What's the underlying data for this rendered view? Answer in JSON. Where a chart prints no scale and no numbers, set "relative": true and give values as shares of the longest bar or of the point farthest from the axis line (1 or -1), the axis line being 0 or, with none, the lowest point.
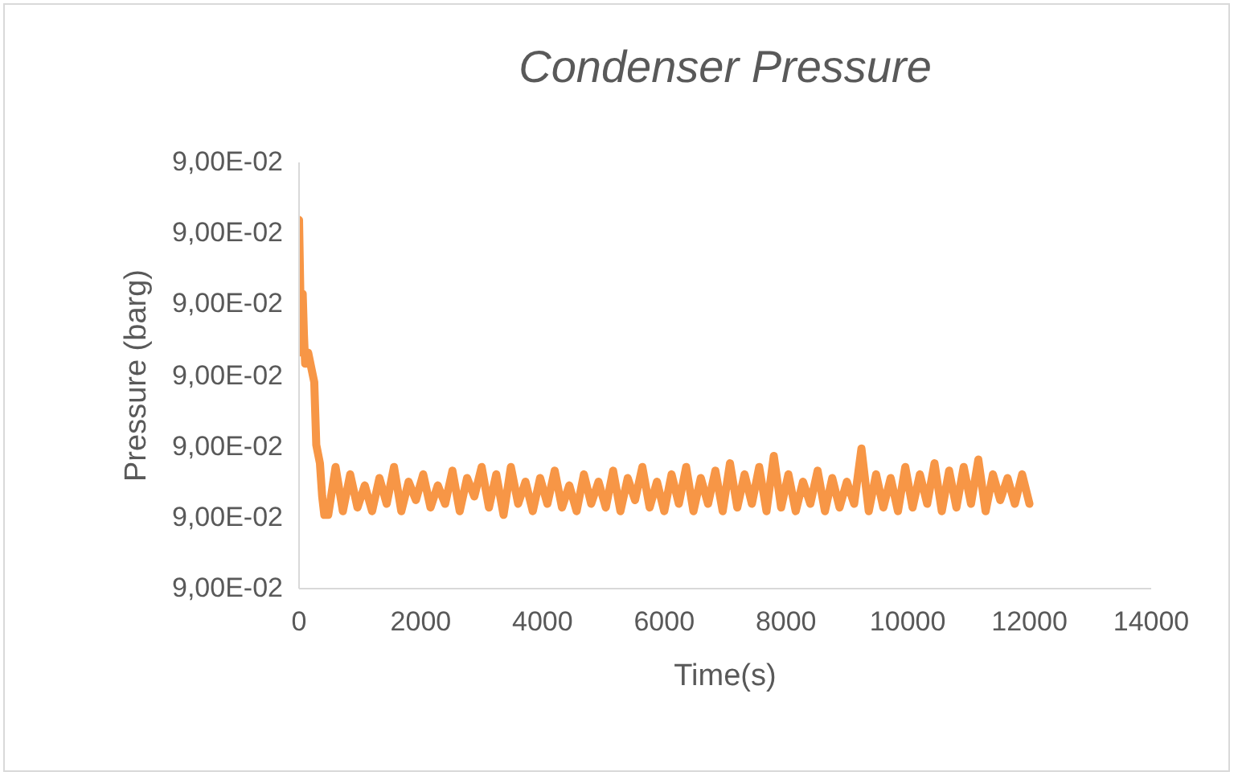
{
  "chart_data": {
    "type": "line",
    "title": "Condenser Pressure",
    "xlabel": "Time(s)",
    "ylabel": "Pressure (barg)",
    "xlim": [
      0,
      14000
    ],
    "xticks": [
      0,
      2000,
      4000,
      6000,
      8000,
      10000,
      12000,
      14000
    ],
    "relative": true,
    "annotations": [
      "9,00E-02",
      "9,00E-02",
      "9,00E-02",
      "9,00E-02",
      "9,00E-02",
      "9,00E-02",
      "9,00E-02"
    ],
    "grid": false,
    "legend": false,
    "marker": "none",
    "line_style": "solid",
    "x": [
      0,
      20,
      40,
      60,
      80,
      100,
      150,
      200,
      250,
      283,
      343,
      380,
      415,
      480,
      600,
      720,
      840,
      960,
      1080,
      1200,
      1320,
      1440,
      1560,
      1680,
      1800,
      1920,
      2040,
      2160,
      2280,
      2400,
      2520,
      2640,
      2760,
      2880,
      3000,
      3120,
      3240,
      3360,
      3480,
      3600,
      3720,
      3840,
      3960,
      4080,
      4200,
      4320,
      4440,
      4560,
      4680,
      4800,
      4920,
      5040,
      5160,
      5280,
      5400,
      5520,
      5640,
      5760,
      5880,
      6000,
      6120,
      6240,
      6360,
      6480,
      6600,
      6720,
      6840,
      6960,
      7080,
      7200,
      7320,
      7440,
      7560,
      7680,
      7800,
      7920,
      8040,
      8160,
      8280,
      8400,
      8520,
      8640,
      8760,
      8880,
      9000,
      9120,
      9240,
      9360,
      9480,
      9600,
      9720,
      9840,
      9960,
      10080,
      10200,
      10320,
      10440,
      10560,
      10680,
      10800,
      10920,
      11040,
      11160,
      11280,
      11400,
      11520,
      11640,
      11760,
      11880,
      12000
    ],
    "series": [
      {
        "color": "#f79646",
        "values": [
          1,
          0.81,
          0.64,
          0.8,
          0.69,
          0.61,
          0.64,
          0.6,
          0.56,
          0.39,
          0.34,
          0.25,
          0.2,
          0.2,
          0.33,
          0.21,
          0.31,
          0.22,
          0.28,
          0.21,
          0.3,
          0.23,
          0.33,
          0.21,
          0.29,
          0.24,
          0.31,
          0.22,
          0.28,
          0.23,
          0.32,
          0.21,
          0.3,
          0.25,
          0.33,
          0.22,
          0.31,
          0.2,
          0.33,
          0.23,
          0.29,
          0.21,
          0.3,
          0.23,
          0.32,
          0.22,
          0.28,
          0.21,
          0.31,
          0.23,
          0.29,
          0.22,
          0.32,
          0.21,
          0.3,
          0.24,
          0.33,
          0.22,
          0.29,
          0.21,
          0.31,
          0.23,
          0.33,
          0.21,
          0.3,
          0.23,
          0.32,
          0.21,
          0.34,
          0.22,
          0.31,
          0.23,
          0.33,
          0.21,
          0.36,
          0.22,
          0.31,
          0.21,
          0.29,
          0.23,
          0.32,
          0.21,
          0.3,
          0.22,
          0.29,
          0.23,
          0.38,
          0.21,
          0.31,
          0.22,
          0.3,
          0.21,
          0.33,
          0.22,
          0.31,
          0.23,
          0.34,
          0.21,
          0.32,
          0.22,
          0.33,
          0.23,
          0.35,
          0.21,
          0.31,
          0.24,
          0.3,
          0.23,
          0.31,
          0.23
        ]
      }
    ]
  }
}
